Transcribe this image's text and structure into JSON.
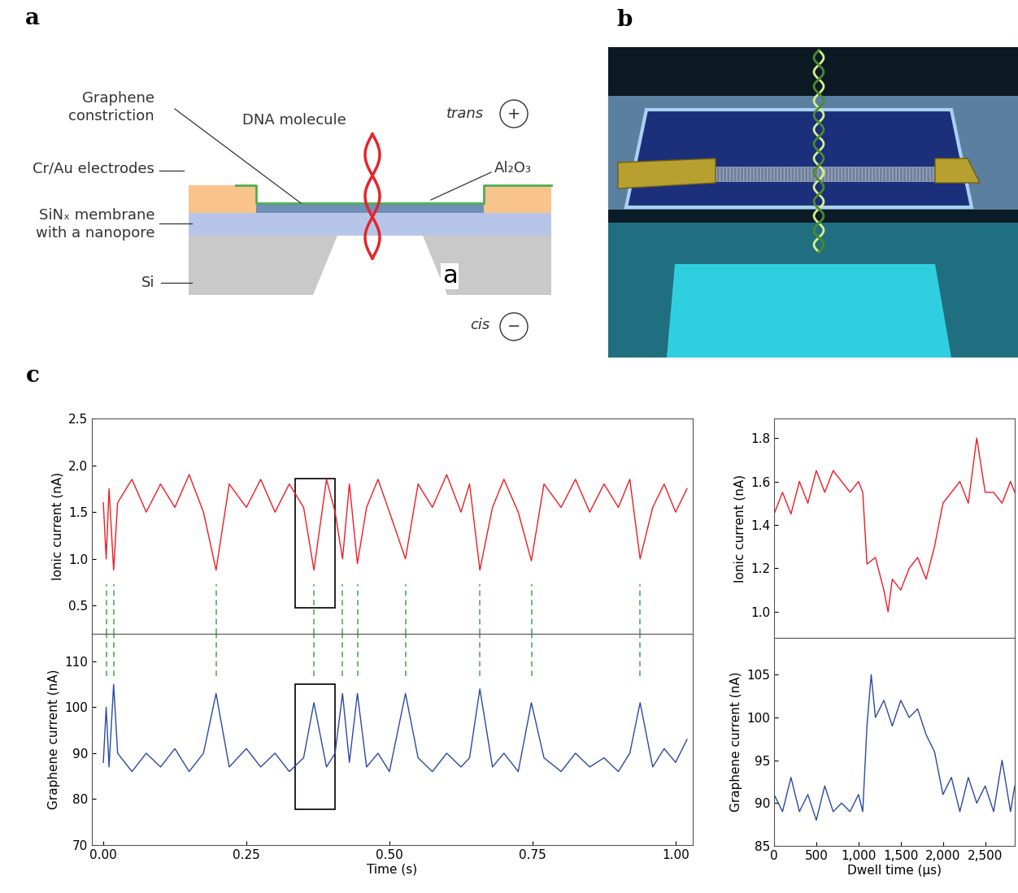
{
  "panel_labels": [
    "a",
    "b",
    "c"
  ],
  "diagram": {
    "graphene_constriction": "Graphene\nconstriction",
    "dna_molecule": "DNA molecule",
    "electrodes": "Cr/Au electrodes",
    "membrane": "SiNₓ membrane\nwith a nanopore",
    "substrate": "Si",
    "oxide": "Al₂O₃",
    "trans": "trans",
    "trans_sign": "+",
    "cis": "cis",
    "cis_sign": "−",
    "inset_label": "a"
  },
  "chart_data": [
    {
      "type": "line",
      "ylabel": "Ionic current (nA)",
      "tick_labels": "y",
      "xlim": [
        -0.02,
        1.03
      ],
      "ylim": [
        0.2,
        2.5
      ],
      "yticks": [
        0.5,
        1.0,
        1.5,
        2.0,
        2.5
      ],
      "events": [
        0.005,
        0.018,
        0.197,
        0.368,
        0.418,
        0.444,
        0.528,
        0.658,
        0.748,
        0.938
      ],
      "highlight_x": [
        0.335,
        0.405
      ],
      "x": [
        0.0,
        0.005,
        0.01,
        0.018,
        0.025,
        0.05,
        0.075,
        0.1,
        0.125,
        0.15,
        0.175,
        0.197,
        0.22,
        0.25,
        0.275,
        0.3,
        0.325,
        0.35,
        0.368,
        0.39,
        0.405,
        0.418,
        0.43,
        0.444,
        0.46,
        0.48,
        0.5,
        0.528,
        0.55,
        0.575,
        0.6,
        0.625,
        0.64,
        0.658,
        0.68,
        0.7,
        0.725,
        0.748,
        0.77,
        0.8,
        0.825,
        0.85,
        0.875,
        0.9,
        0.92,
        0.938,
        0.96,
        0.98,
        1.0,
        1.02
      ],
      "series": [
        {
          "color": "#ee1c24",
          "values": [
            1.6,
            1.0,
            1.75,
            0.88,
            1.6,
            1.85,
            1.5,
            1.8,
            1.55,
            1.9,
            1.5,
            0.88,
            1.8,
            1.55,
            1.85,
            1.5,
            1.8,
            1.55,
            0.88,
            1.85,
            1.5,
            1.0,
            1.8,
            0.95,
            1.55,
            1.85,
            1.5,
            1.0,
            1.8,
            1.55,
            1.9,
            1.5,
            1.8,
            0.88,
            1.55,
            1.85,
            1.5,
            0.98,
            1.8,
            1.55,
            1.85,
            1.5,
            1.8,
            1.55,
            1.85,
            1.0,
            1.55,
            1.8,
            1.5,
            1.75
          ]
        }
      ]
    },
    {
      "type": "line",
      "ylabel": "Graphene current (nA)",
      "xlabel": "Time (s)",
      "xlim": [
        -0.02,
        1.03
      ],
      "ylim": [
        70,
        116
      ],
      "yticks": [
        70,
        80,
        90,
        100,
        110
      ],
      "xticks": [
        {
          "value": 0,
          "label": "0.00"
        },
        {
          "value": 0.25,
          "label": "0.25"
        },
        {
          "value": 0.5,
          "label": "0.50"
        },
        {
          "value": 0.75,
          "label": "0.75"
        },
        {
          "value": 1.0,
          "label": "1.00"
        }
      ],
      "events": [
        0.005,
        0.018,
        0.197,
        0.368,
        0.418,
        0.444,
        0.528,
        0.658,
        0.748,
        0.938
      ],
      "highlight_x": [
        0.335,
        0.405
      ],
      "x": [
        0.0,
        0.005,
        0.01,
        0.018,
        0.025,
        0.05,
        0.075,
        0.1,
        0.125,
        0.15,
        0.175,
        0.197,
        0.22,
        0.25,
        0.275,
        0.3,
        0.325,
        0.35,
        0.368,
        0.39,
        0.405,
        0.418,
        0.43,
        0.444,
        0.46,
        0.48,
        0.5,
        0.528,
        0.55,
        0.575,
        0.6,
        0.625,
        0.64,
        0.658,
        0.68,
        0.7,
        0.725,
        0.748,
        0.77,
        0.8,
        0.825,
        0.85,
        0.875,
        0.9,
        0.92,
        0.938,
        0.96,
        0.98,
        1.0,
        1.02
      ],
      "series": [
        {
          "color": "#2a4aa0",
          "values": [
            88,
            100,
            87,
            105,
            90,
            86,
            90,
            87,
            91,
            86,
            90,
            103,
            87,
            91,
            87,
            90,
            86,
            89,
            101,
            87,
            90,
            103,
            88,
            103,
            87,
            90,
            86,
            103,
            89,
            86,
            90,
            87,
            89,
            104,
            87,
            90,
            86,
            101,
            89,
            86,
            90,
            87,
            89,
            86,
            90,
            101,
            87,
            91,
            88,
            93
          ]
        }
      ]
    },
    {
      "type": "line",
      "ylabel": "Ionic current (nA)",
      "tick_labels": "y",
      "xlim": [
        0,
        2850
      ],
      "ylim": [
        0.88,
        1.89
      ],
      "yticks": [
        1.0,
        1.2,
        1.4,
        1.6,
        1.8
      ],
      "x": [
        0,
        100,
        200,
        300,
        400,
        500,
        600,
        700,
        800,
        900,
        1000,
        1050,
        1100,
        1200,
        1300,
        1350,
        1400,
        1500,
        1600,
        1700,
        1800,
        1900,
        2000,
        2100,
        2200,
        2300,
        2400,
        2500,
        2600,
        2700,
        2800,
        2850
      ],
      "series": [
        {
          "color": "#ee1c24",
          "values": [
            1.45,
            1.55,
            1.45,
            1.6,
            1.5,
            1.65,
            1.55,
            1.65,
            1.6,
            1.55,
            1.6,
            1.55,
            1.22,
            1.25,
            1.1,
            1.0,
            1.15,
            1.1,
            1.2,
            1.25,
            1.15,
            1.3,
            1.5,
            1.55,
            1.6,
            1.5,
            1.8,
            1.55,
            1.55,
            1.5,
            1.6,
            1.55
          ]
        }
      ]
    },
    {
      "type": "line",
      "ylabel": "Graphene current (nA)",
      "xlabel": "Dwell time (µs)",
      "xlim": [
        0,
        2850
      ],
      "ylim": [
        85,
        109.3
      ],
      "yticks": [
        85,
        90,
        95,
        100,
        105
      ],
      "xticks": [
        0,
        500,
        {
          "value": 1000,
          "label": "1,000"
        },
        {
          "value": 1500,
          "label": "1,500"
        },
        {
          "value": 2000,
          "label": "2,000"
        },
        {
          "value": 2500,
          "label": "2,500"
        }
      ],
      "x": [
        0,
        100,
        200,
        300,
        400,
        500,
        600,
        700,
        800,
        900,
        1000,
        1050,
        1100,
        1150,
        1200,
        1300,
        1400,
        1500,
        1600,
        1700,
        1800,
        1900,
        2000,
        2100,
        2200,
        2300,
        2400,
        2500,
        2600,
        2700,
        2800,
        2850
      ],
      "series": [
        {
          "color": "#2a4aa0",
          "values": [
            91,
            89,
            93,
            89,
            91,
            88,
            92,
            89,
            90,
            89,
            91,
            89,
            99,
            105,
            100,
            102,
            99,
            102,
            100,
            101,
            98,
            96,
            91,
            93,
            89,
            93,
            90,
            92,
            89,
            95,
            89,
            92
          ]
        }
      ]
    }
  ]
}
